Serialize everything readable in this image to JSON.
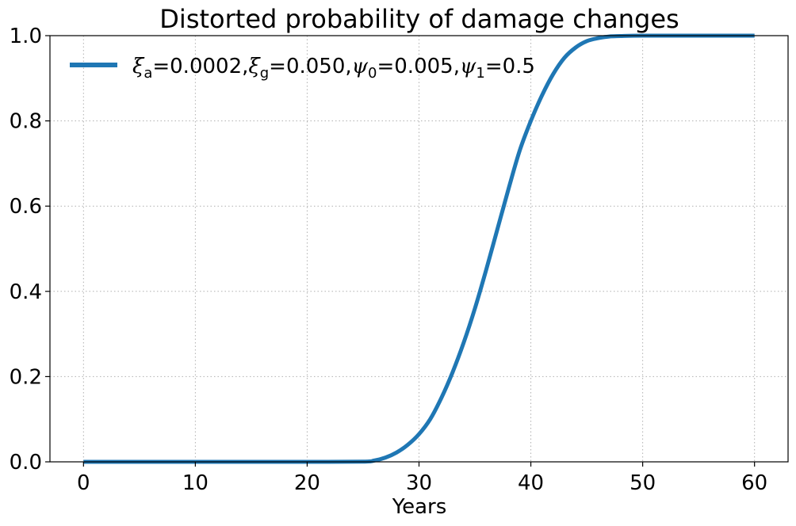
{
  "chart_data": {
    "type": "line",
    "title": "Distorted probability of damage changes",
    "xlabel": "Years",
    "ylabel": "",
    "xlim": [
      -3,
      63
    ],
    "ylim": [
      0,
      1
    ],
    "xticks": [
      0,
      10,
      20,
      30,
      40,
      50,
      60
    ],
    "yticks": [
      0.0,
      0.2,
      0.4,
      0.6,
      0.8,
      1.0
    ],
    "xtick_labels": [
      "0",
      "10",
      "20",
      "30",
      "40",
      "50",
      "60"
    ],
    "ytick_labels": [
      "0.0",
      "0.2",
      "0.4",
      "0.6",
      "0.8",
      "1.0"
    ],
    "grid": true,
    "legend_position": "top-left",
    "series": [
      {
        "name": "ξa=0.0002,ξg=0.050,ψ0=0.005,ψ1=0.5",
        "color": "#1f77b4",
        "x": [
          0,
          5,
          10,
          15,
          20,
          25,
          26,
          27,
          28,
          29,
          30,
          31,
          32,
          33,
          34,
          35,
          36,
          37,
          38,
          39,
          40,
          41,
          42,
          43,
          44,
          45,
          46,
          47,
          48,
          50,
          55,
          60
        ],
        "y": [
          0,
          0,
          0,
          0,
          0,
          0.0005,
          0.003,
          0.01,
          0.022,
          0.04,
          0.065,
          0.1,
          0.15,
          0.21,
          0.28,
          0.36,
          0.45,
          0.545,
          0.64,
          0.73,
          0.8,
          0.86,
          0.91,
          0.948,
          0.972,
          0.987,
          0.994,
          0.998,
          0.999,
          1.0,
          1.0,
          1.0
        ]
      }
    ]
  }
}
